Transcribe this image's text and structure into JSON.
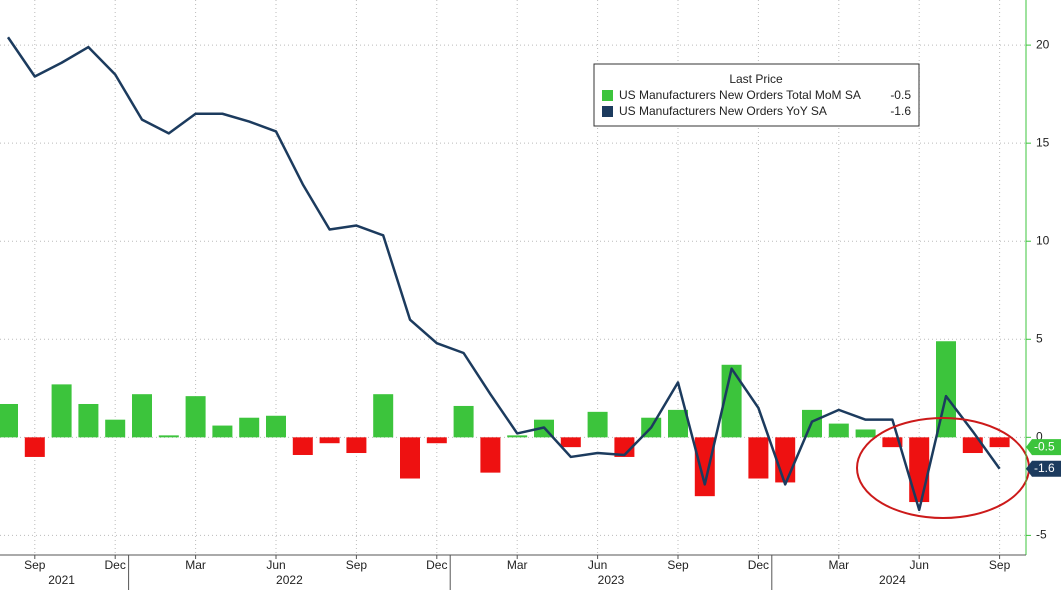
{
  "chart_data": {
    "type": "bar_line",
    "legend_title": "Last Price",
    "categories": [
      null,
      "Sep",
      null,
      null,
      "Dec",
      null,
      null,
      "Mar",
      null,
      null,
      "Jun",
      null,
      null,
      "Sep",
      null,
      null,
      "Dec",
      null,
      null,
      "Mar",
      null,
      null,
      "Jun",
      null,
      null,
      "Sep",
      null,
      null,
      "Dec",
      null,
      null,
      "Mar",
      null,
      null,
      "Jun",
      null,
      null,
      "Sep"
    ],
    "years": [
      "2021",
      "2022",
      "2023",
      "2024"
    ],
    "series": [
      {
        "name": "US Manufacturers New Orders Total MoM SA",
        "type": "bar",
        "color": "#3cc43c",
        "negative_color": "#ee1111",
        "values": [
          1.7,
          -1.0,
          2.7,
          1.7,
          0.9,
          2.2,
          0.1,
          2.1,
          0.6,
          1.0,
          1.1,
          -0.9,
          -0.3,
          -0.8,
          2.2,
          -2.1,
          -0.3,
          1.6,
          -1.8,
          0.1,
          0.9,
          -0.5,
          1.3,
          -1.0,
          1.0,
          1.4,
          -3.0,
          3.7,
          -2.1,
          -2.3,
          1.4,
          0.7,
          0.4,
          -0.5,
          -3.3,
          4.9,
          -0.8,
          -0.5
        ]
      },
      {
        "name": "US Manufacturers New Orders YoY SA",
        "type": "line",
        "color": "#1c3b5e",
        "values": [
          20.4,
          18.4,
          19.1,
          19.9,
          18.5,
          16.2,
          15.5,
          16.5,
          16.5,
          16.1,
          15.6,
          12.9,
          10.6,
          10.8,
          10.3,
          6.0,
          4.8,
          4.3,
          2.2,
          0.2,
          0.5,
          -1.0,
          -0.8,
          -0.9,
          0.5,
          2.8,
          -2.4,
          3.5,
          1.5,
          -2.4,
          0.8,
          1.4,
          0.9,
          0.9,
          -3.7,
          2.1,
          0.3,
          -1.6
        ]
      }
    ],
    "ylim": [
      -6,
      22.3
    ],
    "yticks": [
      -5,
      0,
      5,
      10,
      15,
      20
    ]
  }
}
